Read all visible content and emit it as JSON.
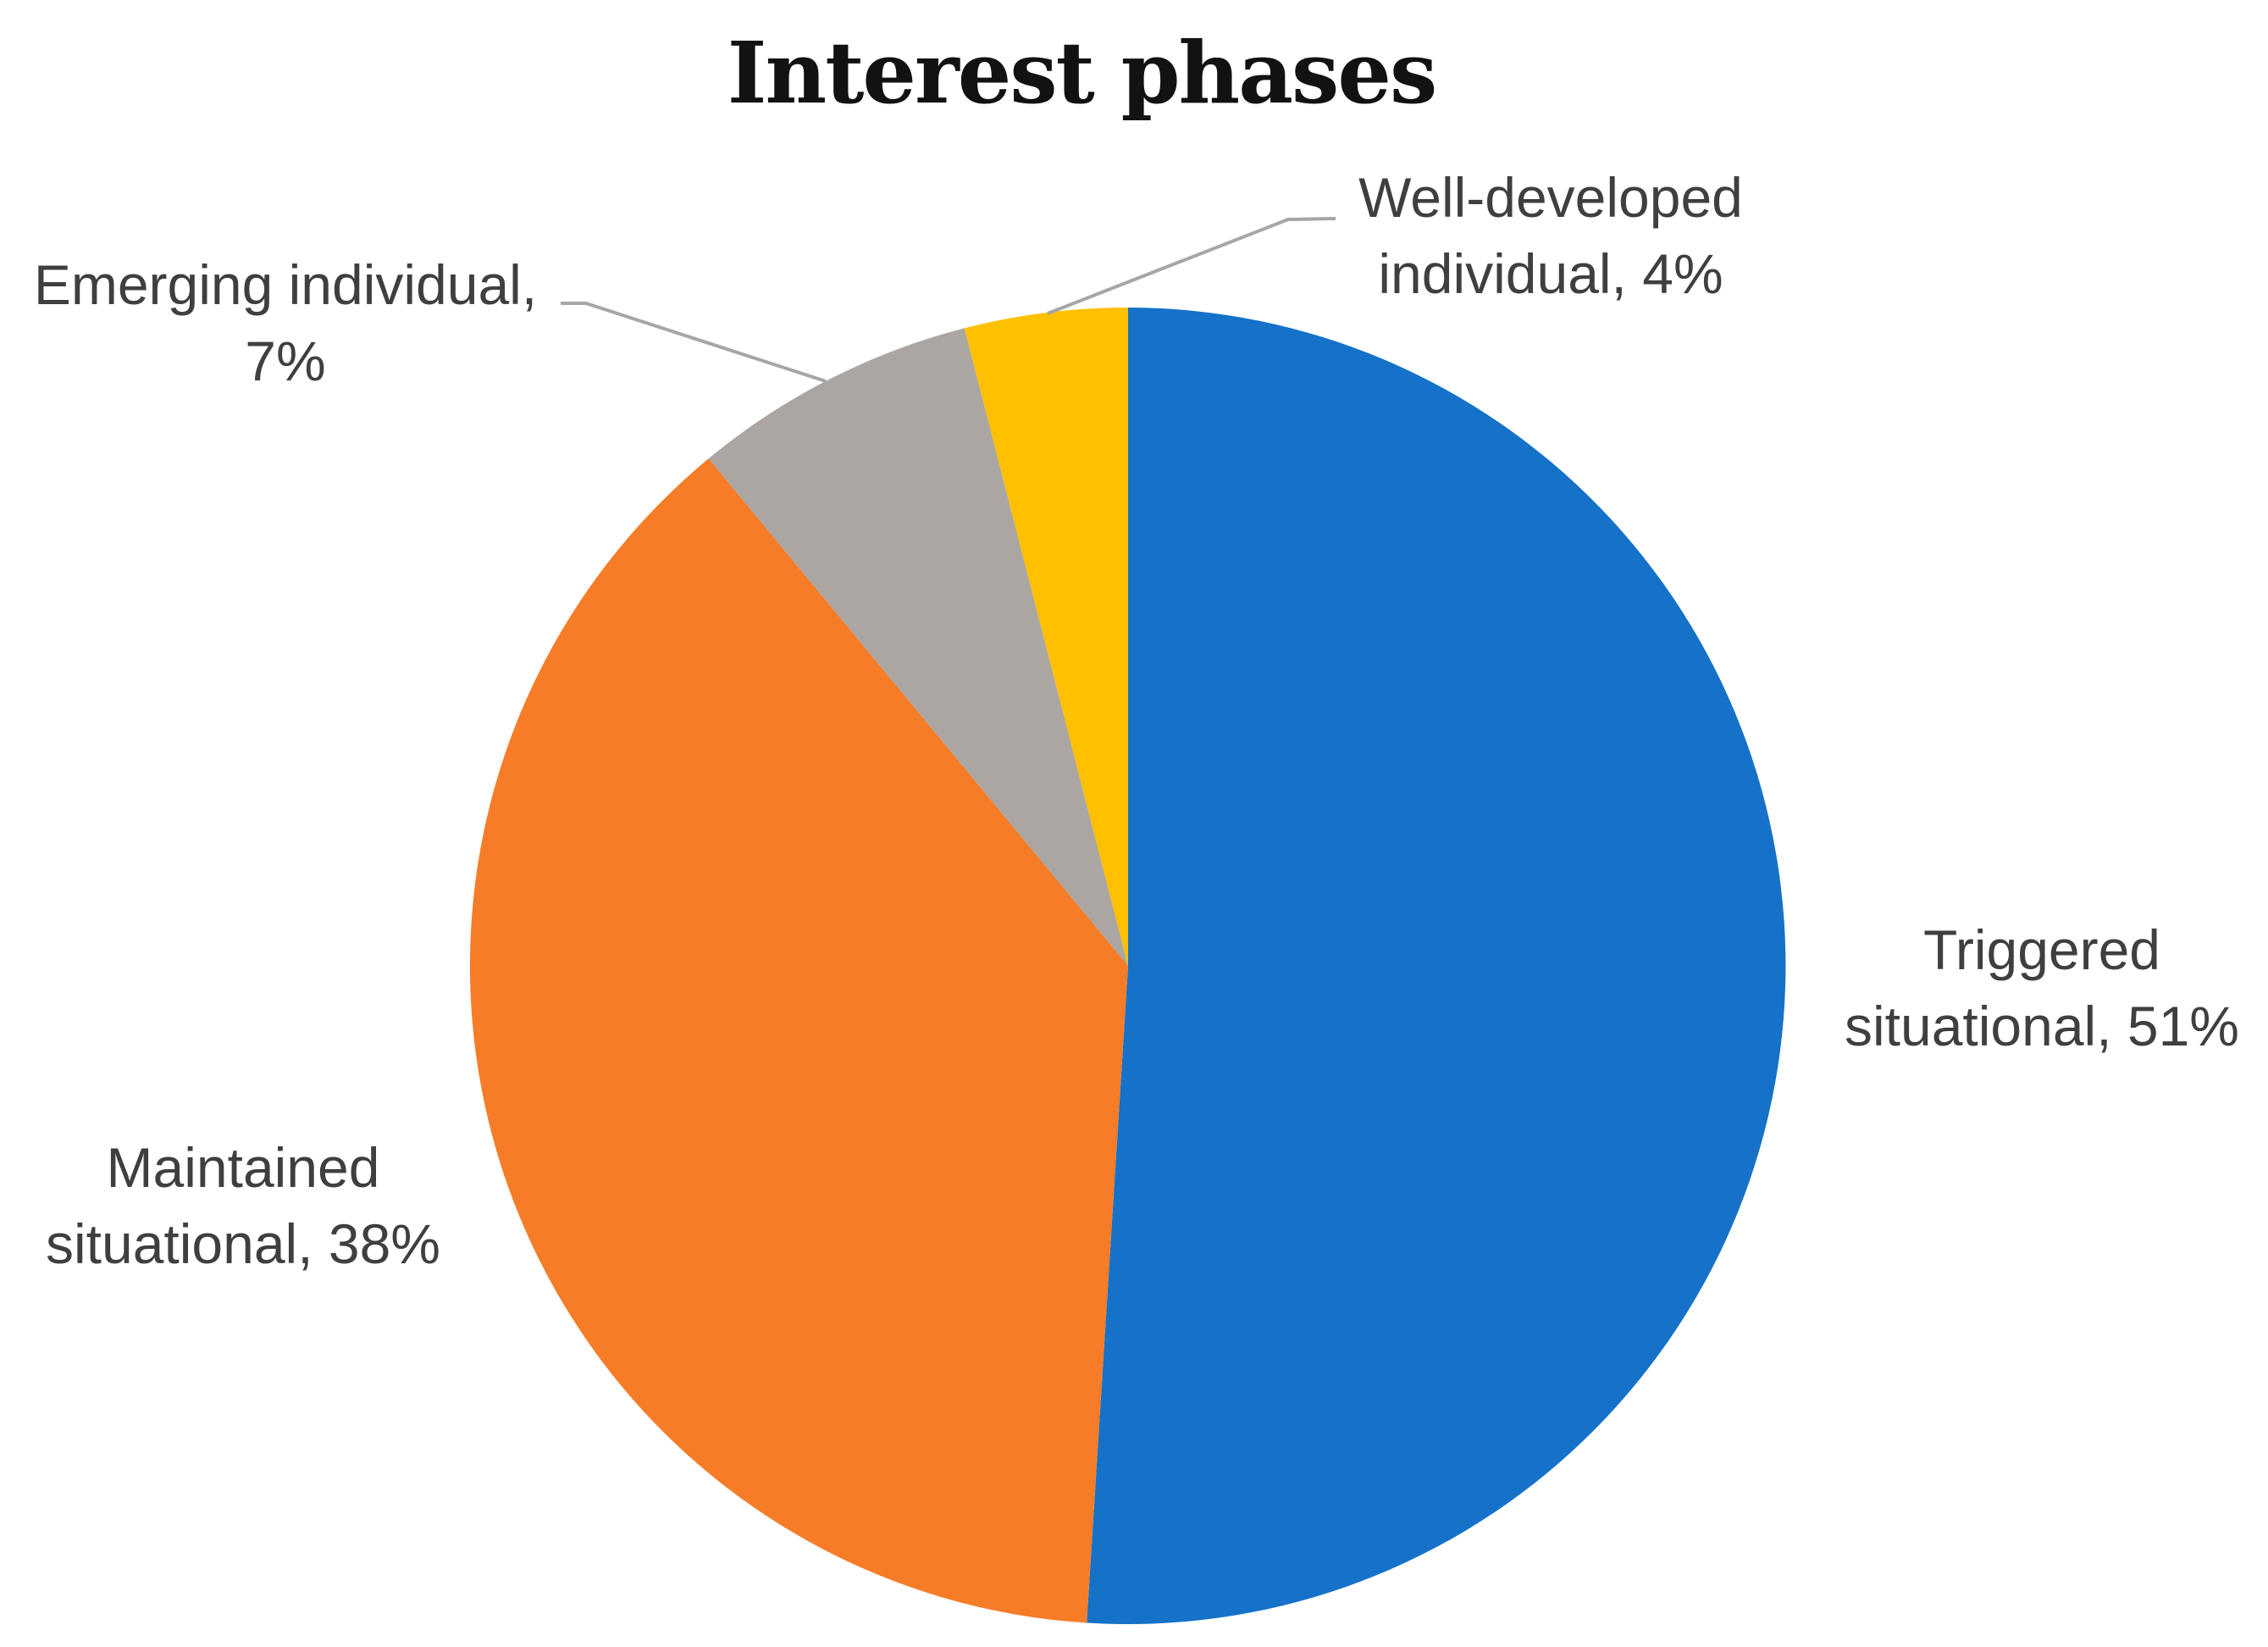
{
  "figure": {
    "title": "Interest phases"
  },
  "chart_data": {
    "type": "pie",
    "title": "Interest phases",
    "categories": [
      "Triggered situational",
      "Maintained situational",
      "Emerging individual",
      "Well-developed individual"
    ],
    "values": [
      51,
      38,
      7,
      4
    ],
    "unit": "%",
    "colors": [
      "#1572C8",
      "#F67C28",
      "#ABA6A2",
      "#FFC000"
    ],
    "start_angle_deg": 0,
    "direction": "clockwise",
    "legend": "none",
    "label_style": "outside-category-and-percent"
  },
  "labels": {
    "triggered": {
      "line1": "Triggered",
      "line2": "situational, 51%"
    },
    "maintained": {
      "line1": "Maintained",
      "line2": "situational, 38%"
    },
    "emerging": {
      "line1": "Emerging individual,",
      "line2": "7%"
    },
    "well_developed": {
      "line1": "Well-developed",
      "line2": "individual, 4%"
    }
  },
  "style": {
    "label_text_color": "#3F3F3F",
    "leader_line_color": "#A6A6A6",
    "title_color": "#121212",
    "background_color": "#FFFFFF"
  }
}
